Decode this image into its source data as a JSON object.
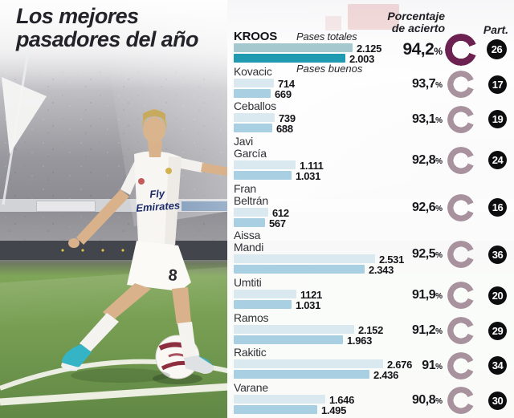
{
  "title": {
    "line1": "Los mejores",
    "line2": "pasadores del año"
  },
  "chart": {
    "series_labels": {
      "totales": "Pases totales",
      "buenos": "Pases buenos"
    },
    "headers": {
      "pct_line1": "Porcentaje",
      "pct_line2": "de acierto",
      "part": "Part."
    },
    "percent_sign": "%",
    "colors": {
      "bar_total_highlight": "#a5c8cf",
      "bar_good_highlight": "#1f9ab1",
      "bar_total": "#d9e9ef",
      "bar_good": "#a9d0e2",
      "ring_highlight": "#6c2150",
      "ring": "#a8929e",
      "badge_bg": "#0d0d0f",
      "badge_text": "#ffffff"
    },
    "players": [
      {
        "name_lines": [
          "KROOS"
        ],
        "highlight": true,
        "total": 2125,
        "total_display": "2.125",
        "good": 2003,
        "good_display": "2.003",
        "pct": 94.2,
        "pct_display": "94,2",
        "part": "26"
      },
      {
        "name_lines": [
          "Kovacic"
        ],
        "highlight": false,
        "total": 714,
        "total_display": "714",
        "good": 669,
        "good_display": "669",
        "pct": 93.7,
        "pct_display": "93,7",
        "part": "17"
      },
      {
        "name_lines": [
          "Ceballos"
        ],
        "highlight": false,
        "total": 739,
        "total_display": "739",
        "good": 688,
        "good_display": "688",
        "pct": 93.1,
        "pct_display": "93,1",
        "part": "19"
      },
      {
        "name_lines": [
          "Javi",
          "García"
        ],
        "highlight": false,
        "total": 1111,
        "total_display": "1.111",
        "good": 1031,
        "good_display": "1.031",
        "pct": 92.8,
        "pct_display": "92,8",
        "part": "24"
      },
      {
        "name_lines": [
          "Fran",
          "Beltrán"
        ],
        "highlight": false,
        "total": 612,
        "total_display": "612",
        "good": 567,
        "good_display": "567",
        "pct": 92.6,
        "pct_display": "92,6",
        "part": "16"
      },
      {
        "name_lines": [
          "Aissa",
          "Mandi"
        ],
        "highlight": false,
        "total": 2531,
        "total_display": "2.531",
        "good": 2343,
        "good_display": "2.343",
        "pct": 92.5,
        "pct_display": "92,5",
        "part": "36"
      },
      {
        "name_lines": [
          "Umtiti"
        ],
        "highlight": false,
        "total": 1121,
        "total_display": "1121",
        "good": 1031,
        "good_display": "1.031",
        "pct": 91.9,
        "pct_display": "91,9",
        "part": "20"
      },
      {
        "name_lines": [
          "Ramos"
        ],
        "highlight": false,
        "total": 2152,
        "total_display": "2.152",
        "good": 1963,
        "good_display": "1.963",
        "pct": 91.2,
        "pct_display": "91,2",
        "part": "29"
      },
      {
        "name_lines": [
          "Rakitic"
        ],
        "highlight": false,
        "total": 2676,
        "total_display": "2.676",
        "good": 2436,
        "good_display": "2.436",
        "pct": 91,
        "pct_display": "91",
        "part": "34"
      },
      {
        "name_lines": [
          "Varane"
        ],
        "highlight": false,
        "total": 1646,
        "total_display": "1.646",
        "good": 1495,
        "good_display": "1.495",
        "pct": 90.8,
        "pct_display": "90,8",
        "part": "30"
      }
    ]
  },
  "photo": {
    "jersey_text_line1": "Fly",
    "jersey_text_line2": "Emirates",
    "shorts_number": "8"
  },
  "chart_data": {
    "type": "bar",
    "orientation": "horizontal",
    "title": "Los mejores pasadores del año",
    "categories": [
      "Kroos",
      "Kovacic",
      "Ceballos",
      "Javi García",
      "Fran Beltrán",
      "Aissa Mandi",
      "Umtiti",
      "Ramos",
      "Rakitic",
      "Varane"
    ],
    "series": [
      {
        "name": "Pases totales",
        "values": [
          2125,
          714,
          739,
          1111,
          612,
          2531,
          1121,
          2152,
          2676,
          1646
        ]
      },
      {
        "name": "Pases buenos",
        "values": [
          2003,
          669,
          688,
          1031,
          567,
          2343,
          1031,
          1963,
          2436,
          1495
        ]
      },
      {
        "name": "Porcentaje de acierto (%)",
        "values": [
          94.2,
          93.7,
          93.1,
          92.8,
          92.6,
          92.5,
          91.9,
          91.2,
          91,
          90.8
        ]
      },
      {
        "name": "Part.",
        "values": [
          26,
          17,
          19,
          24,
          16,
          36,
          20,
          29,
          34,
          30
        ]
      }
    ],
    "xlim": [
      0,
      2700
    ],
    "grid": false,
    "legend_position": "inline-first-row"
  }
}
